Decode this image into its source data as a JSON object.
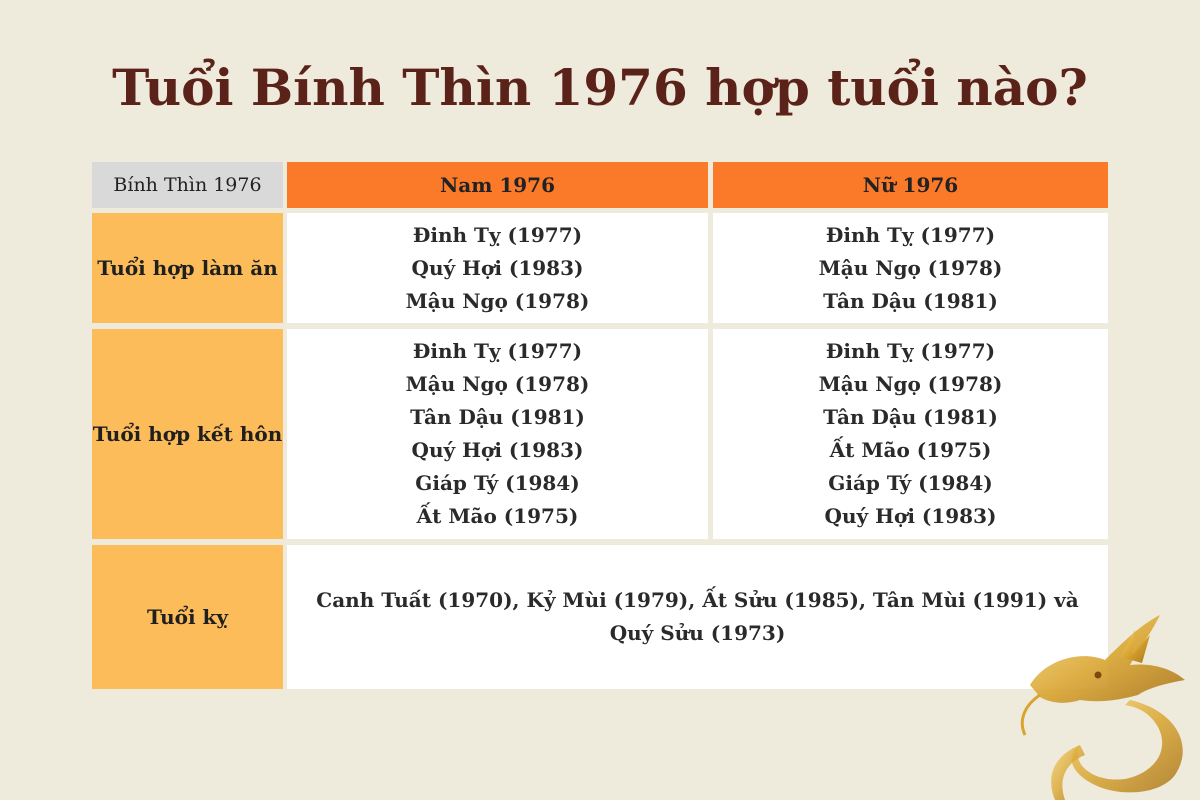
{
  "title": "Tuổi Bính Thìn 1976 hợp tuổi nào?",
  "table": {
    "corner": "Bính Thìn 1976",
    "headers": [
      "Nam 1976",
      "Nữ 1976"
    ],
    "rows": [
      {
        "label": "Tuổi hợp làm ăn",
        "nam": [
          "Đinh Tỵ (1977)",
          "Quý Hợi (1983)",
          "Mậu Ngọ (1978)"
        ],
        "nu": [
          "Đinh Tỵ (1977)",
          "Mậu Ngọ (1978)",
          "Tân Dậu (1981)"
        ]
      },
      {
        "label": "Tuổi hợp kết hôn",
        "nam": [
          "Đinh Tỵ (1977)",
          "Mậu Ngọ (1978)",
          "Tân Dậu (1981)",
          "Quý Hợi (1983)",
          "Giáp Tý (1984)",
          "Ất Mão (1975)"
        ],
        "nu": [
          "Đinh Tỵ (1977)",
          "Mậu Ngọ (1978)",
          "Tân Dậu (1981)",
          "Ất Mão (1975)",
          "Giáp Tý (1984)",
          "Quý Hợi (1983)"
        ]
      },
      {
        "label": "Tuổi kỵ",
        "combined": "Canh Tuất (1970), Kỷ Mùi (1979), Ất Sửu (1985), Tân Mùi (1991) và Quý Sửu (1973)"
      }
    ]
  },
  "colors": {
    "background": "#eeeadc",
    "title": "#5a2218",
    "header": "#fb7a2a",
    "row_label": "#fcbc5a",
    "corner": "#d9d9d9",
    "dragon": "#d9a531"
  },
  "decoration": "golden-dragon-icon"
}
